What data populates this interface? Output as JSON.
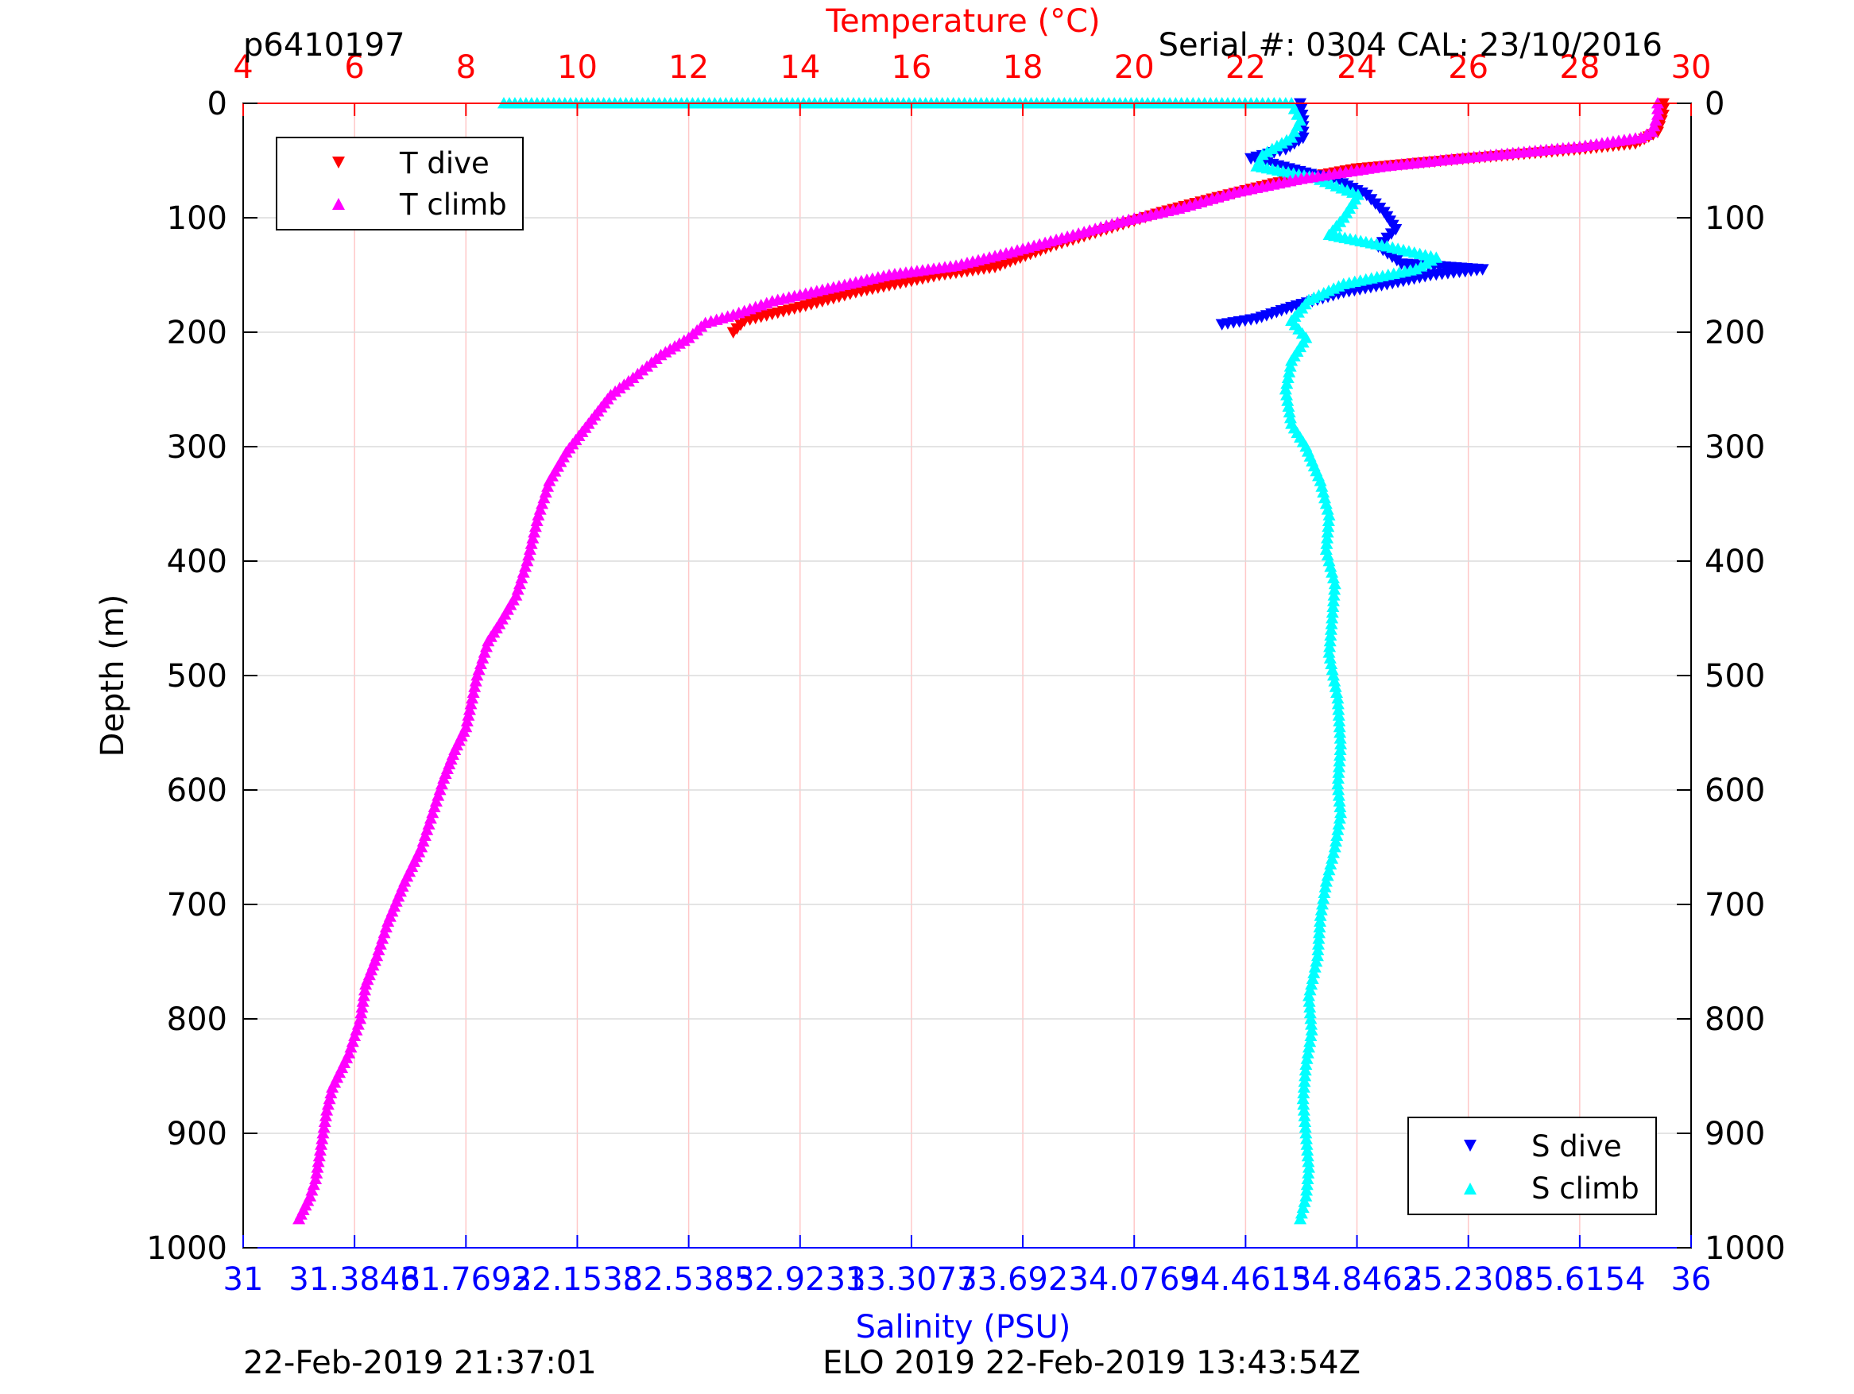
{
  "header": {
    "profile_id": "p6410197",
    "serial_info": "Serial #: 0304  CAL: 23/10/2016"
  },
  "footer": {
    "left_timestamp": "22-Feb-2019 21:37:01",
    "mission_info": "ELO 2019 22-Feb-2019 13:43:54Z"
  },
  "colors": {
    "t_dive": "#ff0000",
    "t_climb": "#ff00ff",
    "s_dive": "#0000ff",
    "s_climb": "#00ffff",
    "temp_axis": "#ff0000",
    "sal_axis": "#0000ff",
    "grid_temp": "#ffc8c8",
    "grid_depth": "#dcdcdc"
  },
  "chart_data": {
    "type": "scatter",
    "y_axis": {
      "label": "Depth (m)",
      "range": [
        0,
        1000
      ],
      "reversed": true,
      "ticks": [
        "0",
        "100",
        "200",
        "300",
        "400",
        "500",
        "600",
        "700",
        "800",
        "900",
        "1000"
      ]
    },
    "temp_axis": {
      "label": "Temperature (°C)",
      "position": "top",
      "range": [
        4,
        30
      ],
      "ticks": [
        "4",
        "6",
        "8",
        "10",
        "12",
        "14",
        "16",
        "18",
        "20",
        "22",
        "24",
        "26",
        "28",
        "30"
      ]
    },
    "sal_axis": {
      "label": "Salinity (PSU)",
      "position": "bottom",
      "range": [
        31,
        36
      ],
      "ticks": [
        "31",
        "31.3846",
        "31.7692",
        "32.1538",
        "32.5385",
        "32.9231",
        "33.3077",
        "33.6923",
        "34.0769",
        "34.4615",
        "34.8462",
        "35.2308",
        "35.6154",
        "36"
      ]
    },
    "legend_temp": {
      "placement": "top-left",
      "entries": [
        "T dive",
        "T climb"
      ]
    },
    "legend_sal": {
      "placement": "bottom-right",
      "entries": [
        "S dive",
        "S climb"
      ]
    },
    "series": [
      {
        "name": "T dive",
        "axis": "temperature",
        "marker": "triangle-down",
        "points": [
          [
            29.5,
            0
          ],
          [
            29.5,
            10
          ],
          [
            29.4,
            25
          ],
          [
            29.0,
            35
          ],
          [
            28.0,
            40
          ],
          [
            26.0,
            48
          ],
          [
            24.0,
            57
          ],
          [
            22.5,
            70
          ],
          [
            21.5,
            82
          ],
          [
            20.5,
            95
          ],
          [
            19.5,
            110
          ],
          [
            18.5,
            125
          ],
          [
            17.5,
            143
          ],
          [
            16.5,
            150
          ],
          [
            15.0,
            165
          ],
          [
            14.0,
            178
          ],
          [
            13.0,
            190
          ],
          [
            12.8,
            200
          ]
        ]
      },
      {
        "name": "T climb",
        "axis": "temperature",
        "marker": "triangle-up",
        "points": [
          [
            29.4,
            0
          ],
          [
            29.4,
            10
          ],
          [
            29.3,
            25
          ],
          [
            29.1,
            30
          ],
          [
            28.0,
            38
          ],
          [
            26.5,
            45
          ],
          [
            24.5,
            55
          ],
          [
            23.0,
            66
          ],
          [
            21.8,
            78
          ],
          [
            20.8,
            92
          ],
          [
            19.8,
            103
          ],
          [
            18.7,
            118
          ],
          [
            17.8,
            130
          ],
          [
            16.8,
            142
          ],
          [
            15.6,
            150
          ],
          [
            14.5,
            162
          ],
          [
            13.5,
            173
          ],
          [
            12.8,
            185
          ],
          [
            12.3,
            192
          ],
          [
            12.0,
            205
          ],
          [
            11.5,
            220
          ],
          [
            11.0,
            240
          ],
          [
            10.6,
            255
          ],
          [
            10.2,
            280
          ],
          [
            9.8,
            305
          ],
          [
            9.5,
            330
          ],
          [
            9.3,
            360
          ],
          [
            9.1,
            400
          ],
          [
            8.9,
            430
          ],
          [
            8.6,
            455
          ],
          [
            8.4,
            470
          ],
          [
            8.2,
            500
          ],
          [
            8.0,
            545
          ],
          [
            7.8,
            565
          ],
          [
            7.6,
            590
          ],
          [
            7.4,
            620
          ],
          [
            7.2,
            650
          ],
          [
            6.9,
            680
          ],
          [
            6.6,
            715
          ],
          [
            6.4,
            745
          ],
          [
            6.2,
            770
          ],
          [
            6.1,
            800
          ],
          [
            5.9,
            830
          ],
          [
            5.6,
            860
          ],
          [
            5.5,
            880
          ],
          [
            5.4,
            910
          ],
          [
            5.3,
            940
          ],
          [
            5.2,
            955
          ],
          [
            5.0,
            975
          ]
        ]
      },
      {
        "name": "S dive",
        "axis": "salinity",
        "marker": "triangle-down",
        "points": [
          [
            34.65,
            0
          ],
          [
            34.66,
            15
          ],
          [
            34.66,
            30
          ],
          [
            34.6,
            40
          ],
          [
            34.48,
            48
          ],
          [
            34.63,
            58
          ],
          [
            34.78,
            68
          ],
          [
            34.88,
            80
          ],
          [
            34.94,
            95
          ],
          [
            34.98,
            110
          ],
          [
            34.92,
            125
          ],
          [
            35.0,
            140
          ],
          [
            35.28,
            145
          ],
          [
            35.1,
            150
          ],
          [
            34.95,
            158
          ],
          [
            34.8,
            165
          ],
          [
            34.62,
            178
          ],
          [
            34.5,
            188
          ],
          [
            34.38,
            193
          ]
        ]
      },
      {
        "name": "S climb",
        "axis": "salinity",
        "marker": "triangle-up",
        "points": [
          [
            31.9,
            0
          ],
          [
            34.2,
            0
          ],
          [
            34.42,
            0
          ],
          [
            34.62,
            0
          ],
          [
            34.65,
            15
          ],
          [
            34.62,
            30
          ],
          [
            34.52,
            45
          ],
          [
            34.5,
            55
          ],
          [
            34.7,
            65
          ],
          [
            34.85,
            80
          ],
          [
            34.8,
            100
          ],
          [
            34.75,
            115
          ],
          [
            34.95,
            125
          ],
          [
            35.12,
            135
          ],
          [
            35.05,
            145
          ],
          [
            34.8,
            158
          ],
          [
            34.68,
            172
          ],
          [
            34.62,
            190
          ],
          [
            34.67,
            205
          ],
          [
            34.62,
            225
          ],
          [
            34.6,
            250
          ],
          [
            34.62,
            280
          ],
          [
            34.67,
            300
          ],
          [
            34.72,
            330
          ],
          [
            34.75,
            360
          ],
          [
            34.74,
            390
          ],
          [
            34.77,
            420
          ],
          [
            34.76,
            450
          ],
          [
            34.75,
            480
          ],
          [
            34.78,
            520
          ],
          [
            34.79,
            560
          ],
          [
            34.78,
            595
          ],
          [
            34.79,
            620
          ],
          [
            34.77,
            650
          ],
          [
            34.74,
            680
          ],
          [
            34.72,
            710
          ],
          [
            34.71,
            745
          ],
          [
            34.68,
            780
          ],
          [
            34.69,
            810
          ],
          [
            34.67,
            840
          ],
          [
            34.66,
            870
          ],
          [
            34.67,
            900
          ],
          [
            34.68,
            930
          ],
          [
            34.67,
            955
          ],
          [
            34.65,
            975
          ]
        ]
      }
    ]
  }
}
